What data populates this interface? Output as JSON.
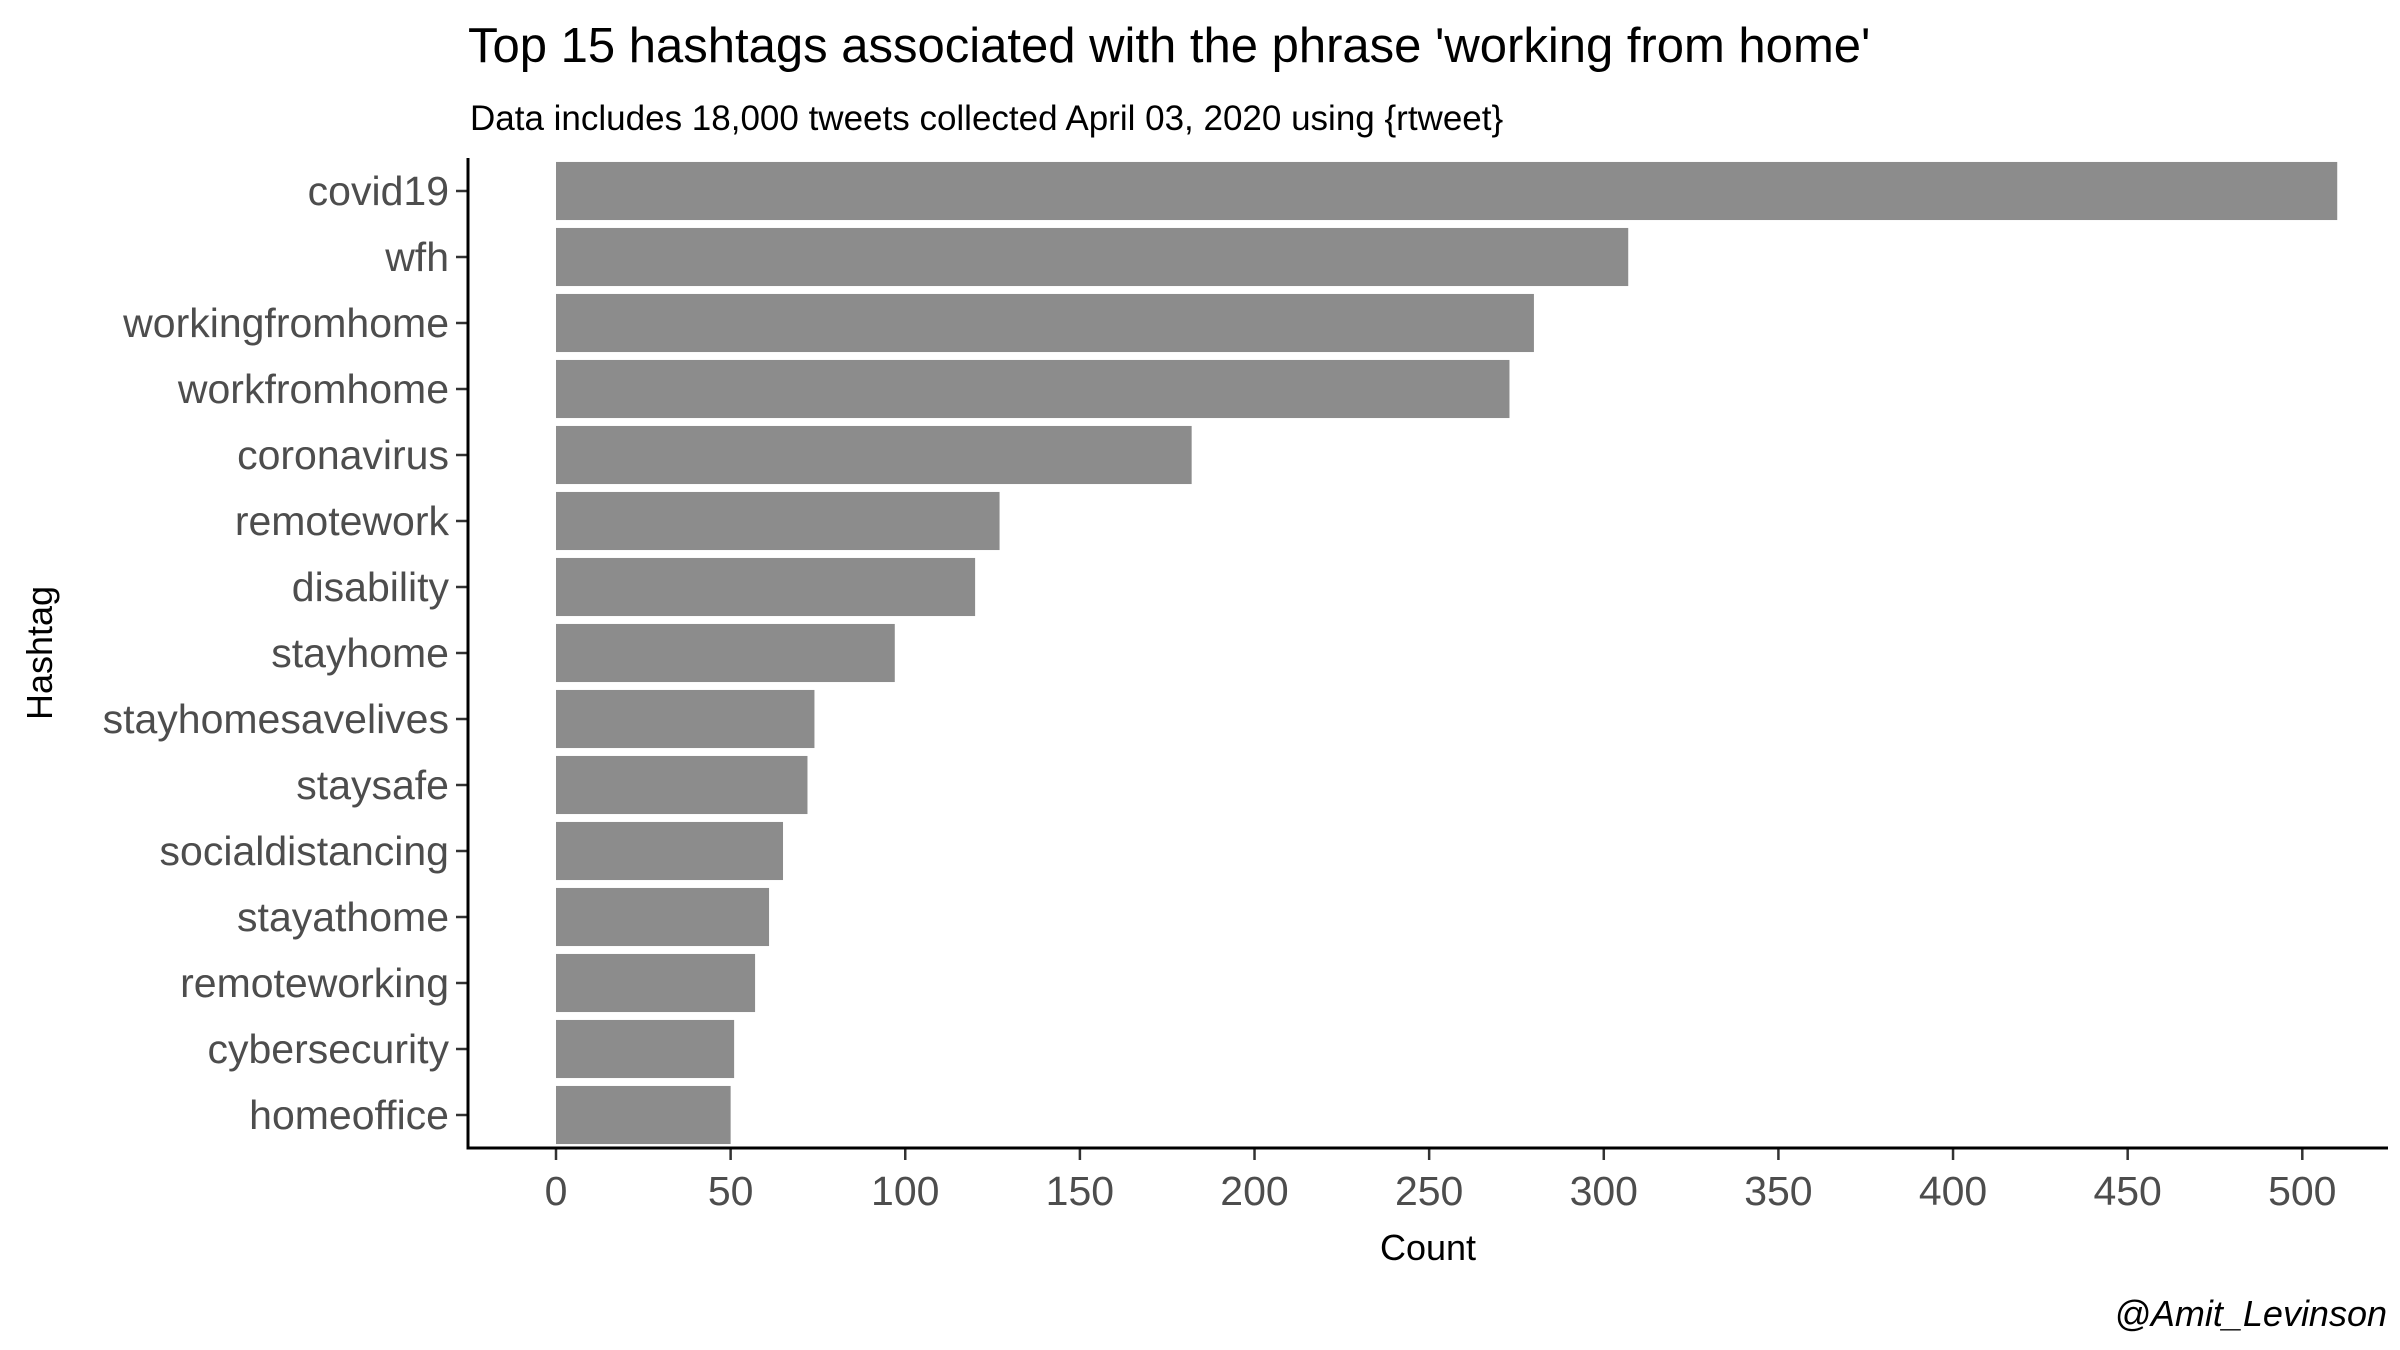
{
  "chart_data": {
    "type": "bar",
    "orientation": "horizontal",
    "title": "Top 15 hashtags associated with the phrase 'working from home'",
    "subtitle": "Data includes 18,000 tweets collected April 03, 2020 using {rtweet}",
    "xlabel": "Count",
    "ylabel": "Hashtag",
    "caption": "@Amit_Levinson",
    "categories": [
      "covid19",
      "wfh",
      "workingfromhome",
      "workfromhome",
      "coronavirus",
      "remotework",
      "disability",
      "stayhome",
      "stayhomesavelives",
      "staysafe",
      "socialdistancing",
      "stayathome",
      "remoteworking",
      "cybersecurity",
      "homeoffice"
    ],
    "values": [
      510,
      307,
      280,
      273,
      182,
      127,
      120,
      97,
      74,
      72,
      65,
      61,
      57,
      51,
      50
    ],
    "xticks": [
      0,
      50,
      100,
      150,
      200,
      250,
      300,
      350,
      400,
      450,
      500
    ],
    "xlim": [
      -26,
      535
    ],
    "bar_color": "#8c8c8c",
    "grid": false,
    "legend": "none"
  }
}
